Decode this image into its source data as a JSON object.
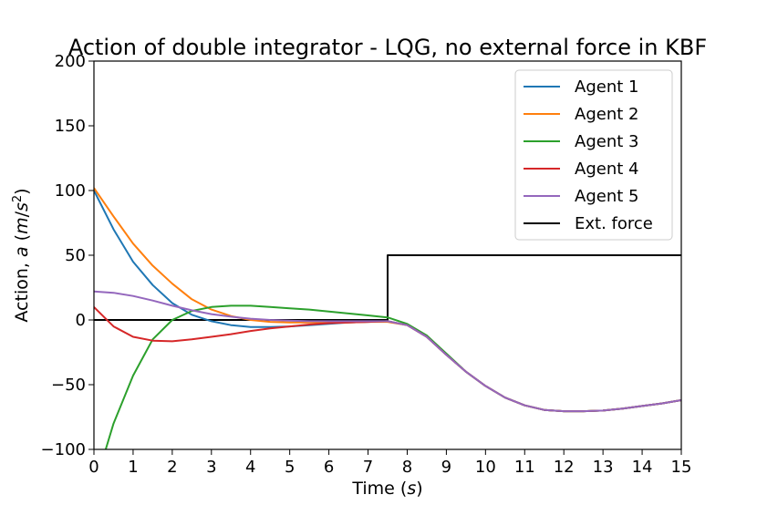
{
  "chart_data": {
    "type": "line",
    "title": "Action of double integrator - LQG, no external force in KBF",
    "xlabel_prefix": "Time (",
    "xlabel_unit": "s",
    "xlabel_suffix": ")",
    "ylabel_prefix": "Action, ",
    "ylabel_var": "a",
    "ylabel_unit_open": " (",
    "ylabel_unit_m": "m",
    "ylabel_unit_slash": "/",
    "ylabel_unit_s": "s",
    "ylabel_unit_exp": "2",
    "ylabel_unit_close": ")",
    "xlim": [
      0,
      15
    ],
    "ylim": [
      -100,
      200
    ],
    "xticks": [
      0,
      1,
      2,
      3,
      4,
      5,
      6,
      7,
      8,
      9,
      10,
      11,
      12,
      13,
      14,
      15
    ],
    "yticks": [
      -100,
      -50,
      0,
      50,
      100,
      150,
      200
    ],
    "ytick_labels": [
      "−100",
      "−50",
      "0",
      "50",
      "100",
      "150",
      "200"
    ],
    "grid": false,
    "legend_position": "top-right",
    "series": [
      {
        "name": "Agent 1",
        "color": "#1f77b4",
        "x": [
          0,
          0.5,
          1,
          1.5,
          2,
          2.5,
          3,
          3.5,
          4,
          4.5,
          5,
          5.5,
          6,
          6.5,
          7,
          7.5,
          8,
          8.5,
          9,
          9.5,
          10,
          10.5,
          11,
          11.5,
          12,
          12.5,
          13,
          13.5,
          14,
          14.5,
          15
        ],
        "y": [
          100,
          70,
          45,
          27,
          13,
          4,
          -1,
          -4,
          -5.5,
          -5.5,
          -5,
          -4,
          -3,
          -2,
          -1.5,
          -1,
          -4,
          -13,
          -27,
          -40,
          -51,
          -60,
          -66,
          -69.5,
          -70.5,
          -70.5,
          -70,
          -68.5,
          -66.5,
          -64.5,
          -62
        ]
      },
      {
        "name": "Agent 2",
        "color": "#ff7f0e",
        "x": [
          0,
          0.5,
          1,
          1.5,
          2,
          2.5,
          3,
          3.5,
          4,
          4.5,
          5,
          5.5,
          6,
          6.5,
          7,
          7.5,
          8,
          8.5,
          9,
          9.5,
          10,
          10.5,
          11,
          11.5,
          12,
          12.5,
          13,
          13.5,
          14,
          14.5,
          15
        ],
        "y": [
          102,
          80,
          59,
          42,
          28,
          16,
          8,
          3,
          0,
          -1.5,
          -2,
          -2,
          -2,
          -2,
          -1.5,
          -1.5,
          -4,
          -13,
          -27,
          -40,
          -51,
          -60,
          -66,
          -69.5,
          -70.5,
          -70.5,
          -70,
          -68.5,
          -66.5,
          -64.5,
          -62
        ]
      },
      {
        "name": "Agent 3",
        "color": "#2ca02c",
        "x": [
          0.3,
          0.5,
          1,
          1.5,
          2,
          2.5,
          3,
          3.5,
          4,
          4.5,
          5,
          5.5,
          6,
          6.5,
          7,
          7.5,
          8,
          8.5,
          9,
          9.5,
          10,
          10.5,
          11,
          11.5,
          12,
          12.5,
          13,
          13.5,
          14,
          14.5,
          15
        ],
        "y": [
          -100,
          -80,
          -43,
          -15,
          0,
          7,
          10,
          11,
          11,
          10,
          9,
          8,
          6.5,
          5,
          3.5,
          2,
          -3,
          -12,
          -26,
          -40,
          -51,
          -60,
          -66,
          -69.5,
          -70.5,
          -70.5,
          -70,
          -68.5,
          -66.5,
          -64.5,
          -62
        ]
      },
      {
        "name": "Agent 4",
        "color": "#d62728",
        "x": [
          0,
          0.5,
          1,
          1.5,
          2,
          2.5,
          3,
          3.5,
          4,
          4.5,
          5,
          5.5,
          6,
          6.5,
          7,
          7.5,
          8,
          8.5,
          9,
          9.5,
          10,
          10.5,
          11,
          11.5,
          12,
          12.5,
          13,
          13.5,
          14,
          14.5,
          15
        ],
        "y": [
          10,
          -5,
          -13,
          -16,
          -16.5,
          -15,
          -13,
          -11,
          -8.5,
          -6.5,
          -5,
          -3.5,
          -2.5,
          -2,
          -1.5,
          -1,
          -4,
          -13,
          -27,
          -40,
          -51,
          -60,
          -66,
          -69.5,
          -70.5,
          -70.5,
          -70,
          -68.5,
          -66.5,
          -64.5,
          -62
        ]
      },
      {
        "name": "Agent 5",
        "color": "#9467bd",
        "x": [
          0,
          0.5,
          1,
          1.5,
          2,
          2.5,
          3,
          3.5,
          4,
          4.5,
          5,
          5.5,
          6,
          6.5,
          7,
          7.5,
          8,
          8.5,
          9,
          9.5,
          10,
          10.5,
          11,
          11.5,
          12,
          12.5,
          13,
          13.5,
          14,
          14.5,
          15
        ],
        "y": [
          22,
          21,
          18.5,
          15,
          11,
          7.5,
          4.5,
          2.5,
          1,
          0,
          -0.5,
          -1,
          -1,
          -1,
          -1,
          -1,
          -4,
          -13,
          -27,
          -40,
          -51,
          -60,
          -66,
          -69.5,
          -70.5,
          -70.5,
          -70,
          -68.5,
          -66.5,
          -64.5,
          -62
        ]
      },
      {
        "name": "Ext. force",
        "color": "#000000",
        "x": [
          0,
          7.5,
          7.5,
          15
        ],
        "y": [
          0,
          0,
          50,
          50
        ]
      }
    ]
  }
}
